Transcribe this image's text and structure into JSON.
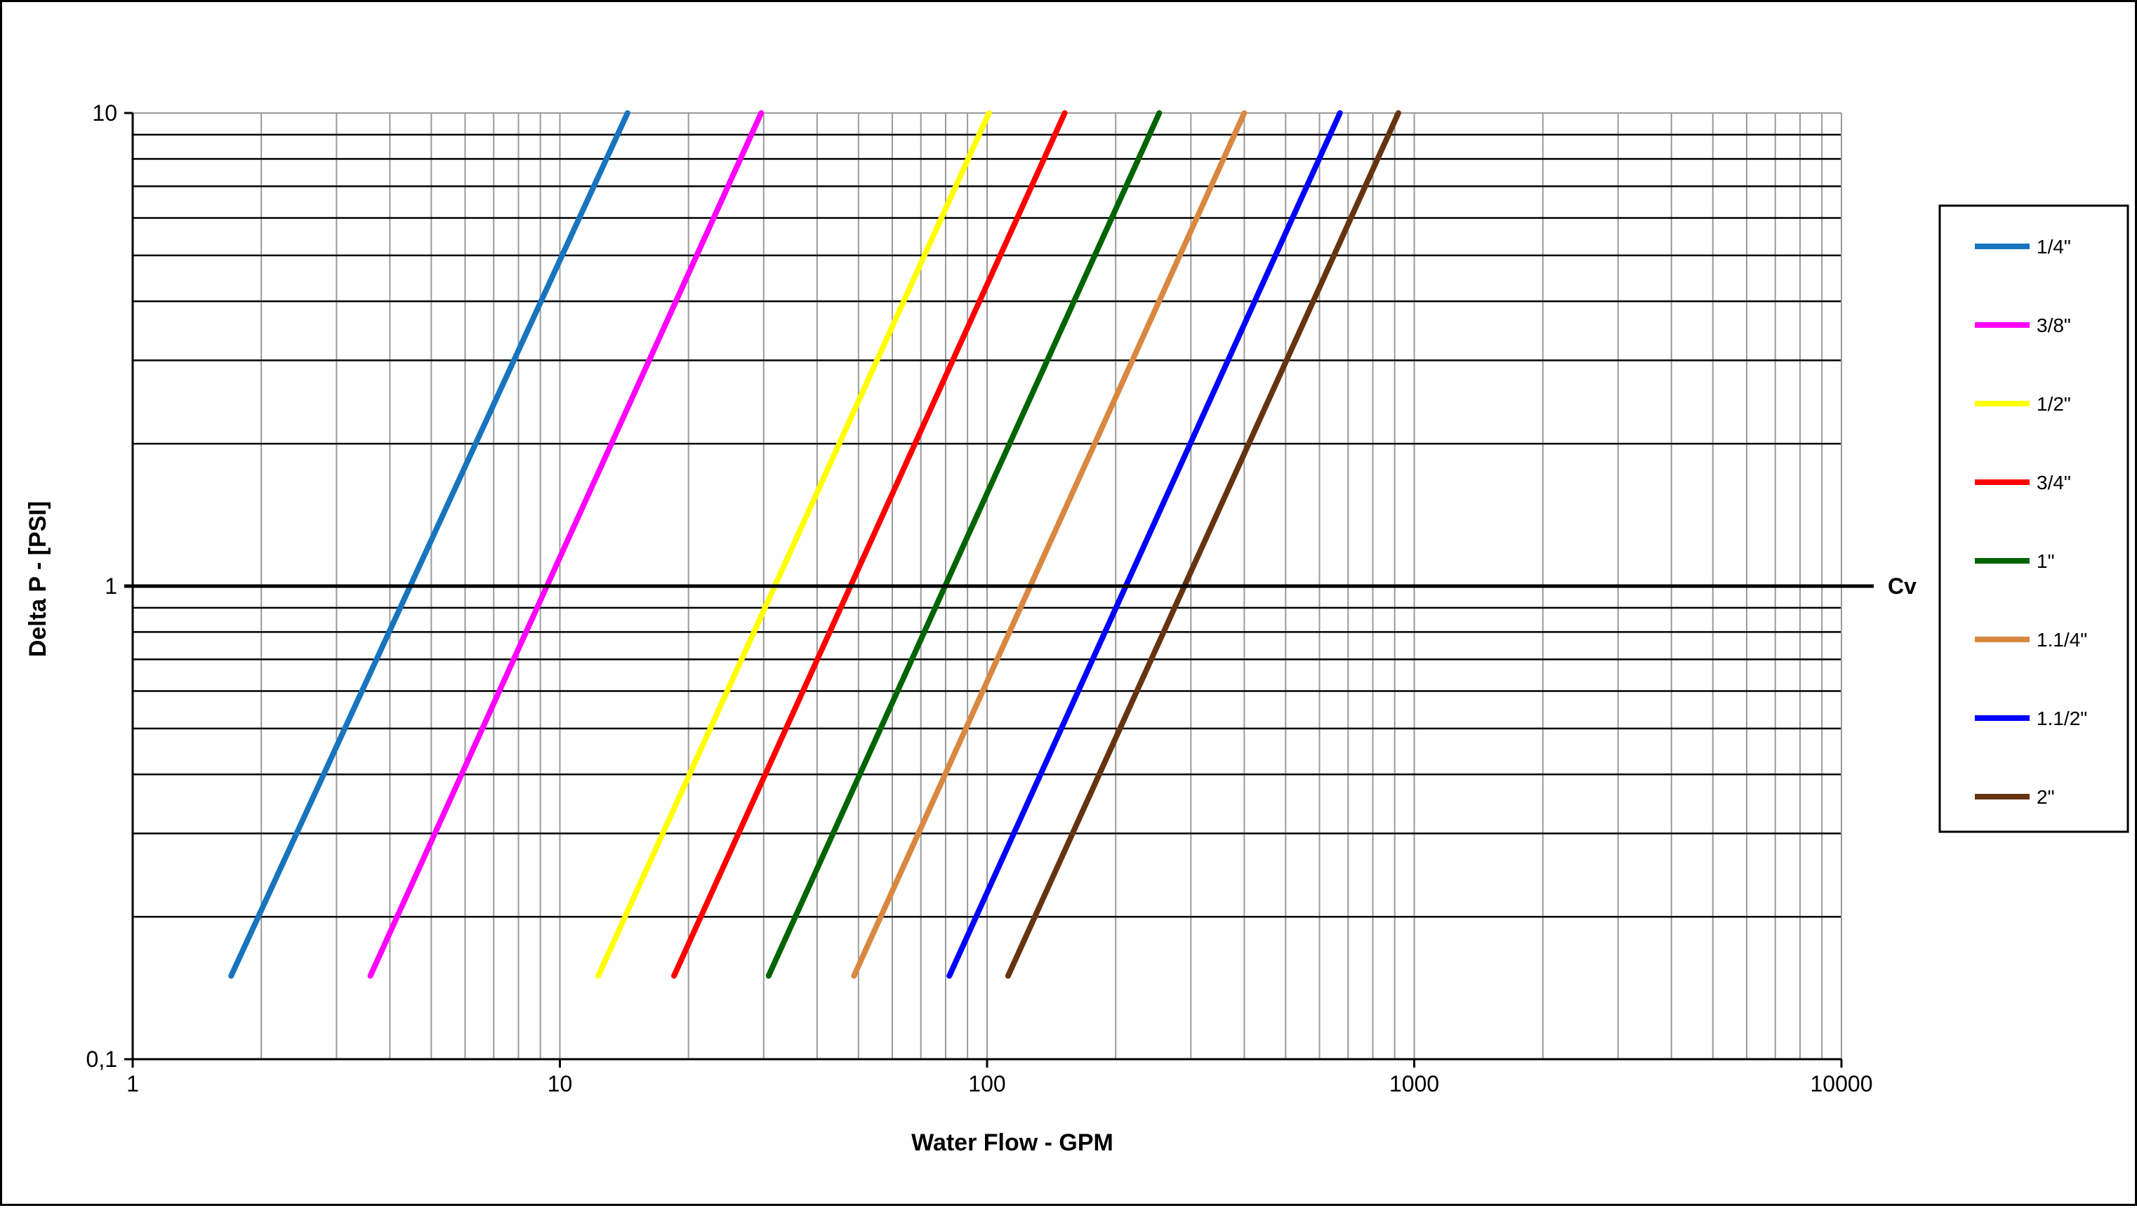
{
  "chart_data": {
    "type": "line",
    "xlabel": "Water Flow  - GPM",
    "ylabel": "Delta P - [PSI]",
    "x_scale": "log",
    "y_scale": "log",
    "xlim": [
      1,
      10000
    ],
    "ylim": [
      0.1,
      10
    ],
    "grid": true,
    "legend_position": "right",
    "x_tick_labels": [
      {
        "value": 1,
        "label": "1"
      },
      {
        "value": 10,
        "label": "10"
      },
      {
        "value": 100,
        "label": "100"
      },
      {
        "value": 1000,
        "label": "1000"
      },
      {
        "value": 10000,
        "label": "10000"
      }
    ],
    "y_tick_labels": [
      {
        "value": 0.1,
        "label": "0,1"
      },
      {
        "value": 1,
        "label": "1"
      },
      {
        "value": 10,
        "label": "10"
      }
    ],
    "reference_line": {
      "y": 1,
      "label": "Cv"
    },
    "series": [
      {
        "name": "1/4\"",
        "color": "#1874BE",
        "x": [
          1.7,
          14.4
        ],
        "y": [
          0.15,
          10
        ]
      },
      {
        "name": "3/8\"",
        "color": "#FF00FF",
        "x": [
          3.6,
          29.6
        ],
        "y": [
          0.15,
          10
        ]
      },
      {
        "name": "1/2\"",
        "color": "#FFFF00",
        "x": [
          12.3,
          101
        ],
        "y": [
          0.15,
          10
        ]
      },
      {
        "name": "3/4\"",
        "color": "#FF0000",
        "x": [
          18.5,
          152
        ],
        "y": [
          0.15,
          10
        ]
      },
      {
        "name": "1\"",
        "color": "#006400",
        "x": [
          30.8,
          253
        ],
        "y": [
          0.15,
          10
        ]
      },
      {
        "name": "1.1/4\"",
        "color": "#D88840",
        "x": [
          48.8,
          400
        ],
        "y": [
          0.15,
          10
        ]
      },
      {
        "name": "1.1/2\"",
        "color": "#0000FF",
        "x": [
          81.6,
          670
        ],
        "y": [
          0.15,
          10
        ]
      },
      {
        "name": "2\"",
        "color": "#663311",
        "x": [
          112,
          918
        ],
        "y": [
          0.15,
          10
        ]
      }
    ]
  }
}
